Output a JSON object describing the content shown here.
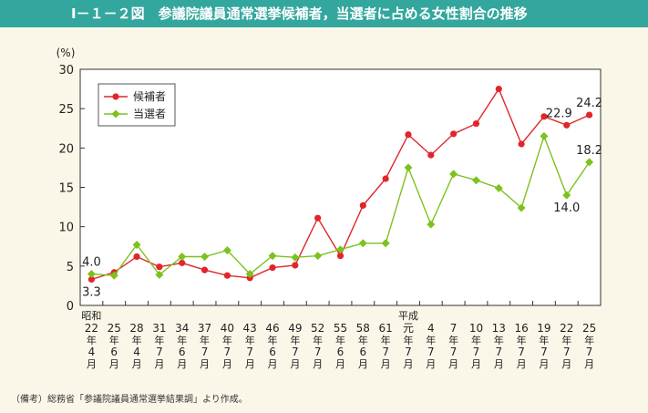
{
  "title": "Ⅰ－１－２図　参議院議員通常選挙候補者，当選者に占める女性割合の推移",
  "note": "（備考）総務省「参議院議員通常選挙結果調」より作成。",
  "colors": {
    "header_bg": "#33a79e",
    "background": "#fbf7e8",
    "plot_bg": "#ffffff",
    "candidates": "#e0262a",
    "winners": "#7cc21e"
  },
  "chart_data": {
    "type": "line",
    "y_unit_label": "(%)",
    "ylim": [
      0,
      30
    ],
    "yticks": [
      "0",
      "5",
      "10",
      "15",
      "20",
      "25",
      "30"
    ],
    "grid": false,
    "legend_position": "top-left",
    "era_labels": [
      {
        "index": 0,
        "label": "昭和"
      },
      {
        "index": 14,
        "label": "平成"
      }
    ],
    "categories": [
      {
        "year": "22",
        "month": "4"
      },
      {
        "year": "25",
        "month": "6"
      },
      {
        "year": "28",
        "month": "4"
      },
      {
        "year": "31",
        "month": "7"
      },
      {
        "year": "34",
        "month": "6"
      },
      {
        "year": "37",
        "month": "7"
      },
      {
        "year": "40",
        "month": "7"
      },
      {
        "year": "43",
        "month": "7"
      },
      {
        "year": "46",
        "month": "6"
      },
      {
        "year": "49",
        "month": "7"
      },
      {
        "year": "52",
        "month": "7"
      },
      {
        "year": "55",
        "month": "6"
      },
      {
        "year": "58",
        "month": "6"
      },
      {
        "year": "61",
        "month": "7"
      },
      {
        "year": "元",
        "month": "7"
      },
      {
        "year": "4",
        "month": "7"
      },
      {
        "year": "7",
        "month": "7"
      },
      {
        "year": "10",
        "month": "7"
      },
      {
        "year": "13",
        "month": "7"
      },
      {
        "year": "16",
        "month": "7"
      },
      {
        "year": "19",
        "month": "7"
      },
      {
        "year": "22",
        "month": "7"
      },
      {
        "year": "25",
        "month": "7"
      }
    ],
    "year_suffix": "年",
    "month_suffix": "月",
    "series": [
      {
        "name": "候補者",
        "marker": "circle",
        "values": [
          3.3,
          4.2,
          6.2,
          4.9,
          5.4,
          4.5,
          3.8,
          3.5,
          4.8,
          5.1,
          11.1,
          6.3,
          12.7,
          16.1,
          21.7,
          19.1,
          21.8,
          23.1,
          27.5,
          20.5,
          24.0,
          22.9,
          24.2
        ]
      },
      {
        "name": "当選者",
        "marker": "diamond",
        "values": [
          4.0,
          3.8,
          7.7,
          3.9,
          6.2,
          6.2,
          7.0,
          4.0,
          6.3,
          6.1,
          6.3,
          7.1,
          7.9,
          7.9,
          17.5,
          10.3,
          16.7,
          15.9,
          14.9,
          12.4,
          21.5,
          14.0,
          18.2
        ]
      }
    ],
    "annotations": [
      {
        "series": 1,
        "index": 0,
        "text": "4.0",
        "pos": "above"
      },
      {
        "series": 0,
        "index": 0,
        "text": "3.3",
        "pos": "below"
      },
      {
        "series": 0,
        "index": 22,
        "text": "24.2",
        "pos": "above"
      },
      {
        "series": 0,
        "index": 21,
        "text": "22.9",
        "pos": "above-right"
      },
      {
        "series": 1,
        "index": 21,
        "text": "14.0",
        "pos": "below"
      },
      {
        "series": 1,
        "index": 22,
        "text": "18.2",
        "pos": "above"
      }
    ]
  }
}
